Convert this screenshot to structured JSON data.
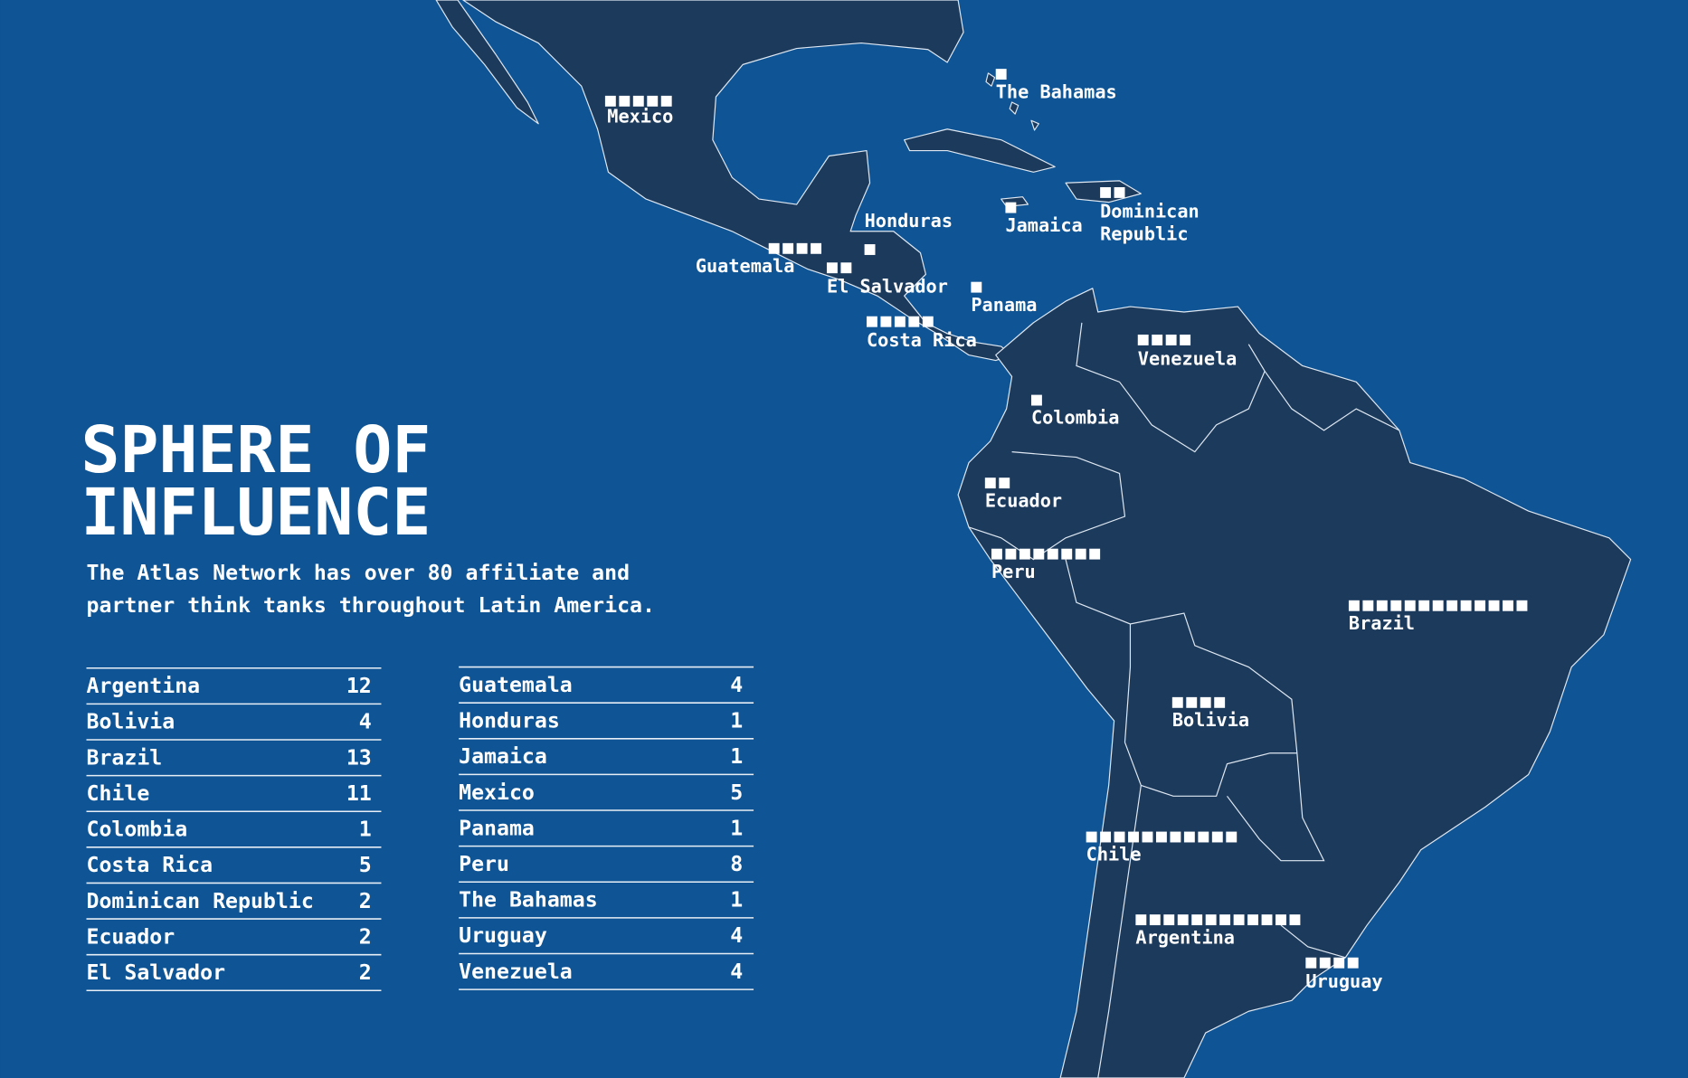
{
  "title": "SPHERE OF INFLUENCE",
  "description": "The Atlas Network has over 80 affiliate and partner think tanks throughout Latin America.",
  "countries": [
    {
      "name": "Argentina",
      "count": 12
    },
    {
      "name": "Bolivia",
      "count": 4
    },
    {
      "name": "Brazil",
      "count": 13
    },
    {
      "name": "Chile",
      "count": 11
    },
    {
      "name": "Colombia",
      "count": 1
    },
    {
      "name": "Costa Rica",
      "count": 5
    },
    {
      "name": "Dominican Republic",
      "count": 2
    },
    {
      "name": "Ecuador",
      "count": 2
    },
    {
      "name": "El Salvador",
      "count": 2
    },
    {
      "name": "Guatemala",
      "count": 4
    },
    {
      "name": "Honduras",
      "count": 1
    },
    {
      "name": "Jamaica",
      "count": 1
    },
    {
      "name": "Mexico",
      "count": 5
    },
    {
      "name": "Panama",
      "count": 1
    },
    {
      "name": "Peru",
      "count": 8
    },
    {
      "name": "The Bahamas",
      "count": 1
    },
    {
      "name": "Uruguay",
      "count": 4
    },
    {
      "name": "Venezuela",
      "count": 4
    }
  ]
}
